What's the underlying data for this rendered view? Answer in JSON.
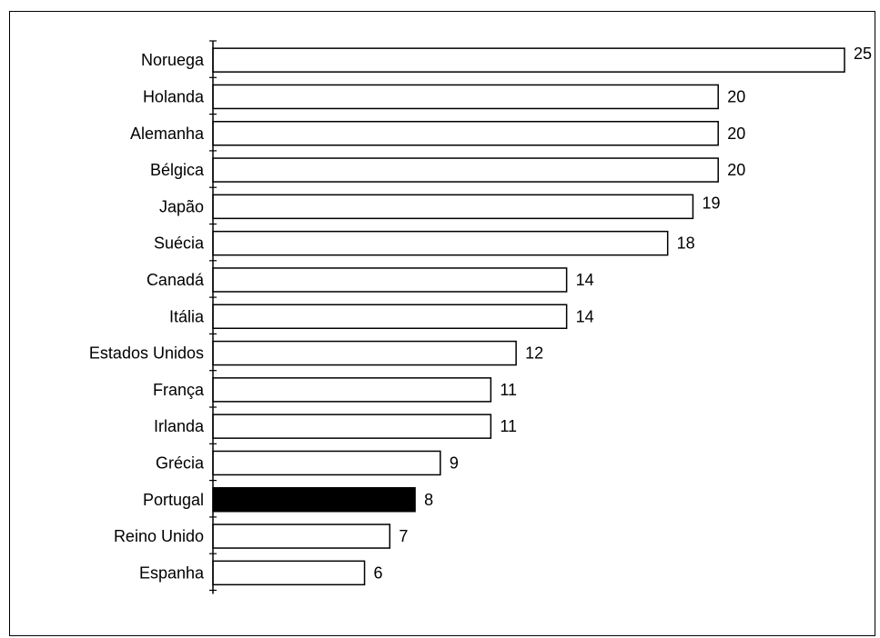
{
  "chart_data": {
    "type": "bar",
    "orientation": "horizontal",
    "categories": [
      "Noruega",
      "Holanda",
      "Alemanha",
      "Bélgica",
      "Japão",
      "Suécia",
      "Canadá",
      "Itália",
      "Estados Unidos",
      "França",
      "Irlanda",
      "Grécia",
      "Portugal",
      "Reino Unido",
      "Espanha"
    ],
    "values": [
      25,
      20,
      20,
      20,
      19,
      18,
      14,
      14,
      12,
      11,
      11,
      9,
      8,
      7,
      6
    ],
    "highlight": "Portugal",
    "colors": {
      "bar": "#ffffff",
      "highlight": "#000000",
      "stroke": "#000000"
    },
    "grid": false,
    "legend": "none"
  }
}
